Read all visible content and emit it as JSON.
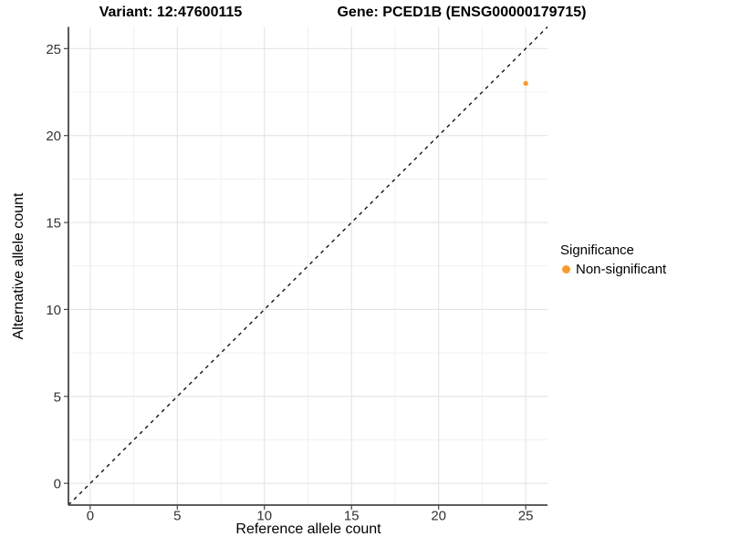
{
  "chart_data": {
    "type": "scatter",
    "titles": [
      "Variant: 12:47600115",
      "Gene: PCED1B (ENSG00000179715)"
    ],
    "xlabel": "Reference allele count",
    "ylabel": "Alternative allele count",
    "xlim": [
      -1.25,
      26.25
    ],
    "ylim": [
      -1.25,
      26.25
    ],
    "x_ticks": [
      0,
      5,
      10,
      15,
      20,
      25
    ],
    "y_ticks": [
      0,
      5,
      10,
      15,
      20,
      25
    ],
    "x_minor_ticks": [
      2.5,
      7.5,
      12.5,
      17.5,
      22.5
    ],
    "y_minor_ticks": [
      2.5,
      7.5,
      12.5,
      17.5,
      22.5
    ],
    "grid": true,
    "reference_line": {
      "type": "identity",
      "equation": "y = x",
      "style": "dashed",
      "color": "#111111"
    },
    "series": [
      {
        "name": "Non-significant",
        "color": "#F89B2D",
        "points": [
          {
            "x": 25,
            "y": 23
          }
        ]
      }
    ],
    "legend": {
      "title": "Significance",
      "position": "right",
      "entries": [
        {
          "label": "Non-significant",
          "color": "#F89B2D"
        }
      ]
    },
    "style_hints": {
      "background": "#FFFFFF",
      "grid_major_color": "#E4E4E4",
      "grid_minor_color": "#F0F0F0",
      "axis_color": "#464646",
      "tick_label_color": "#333333"
    }
  }
}
